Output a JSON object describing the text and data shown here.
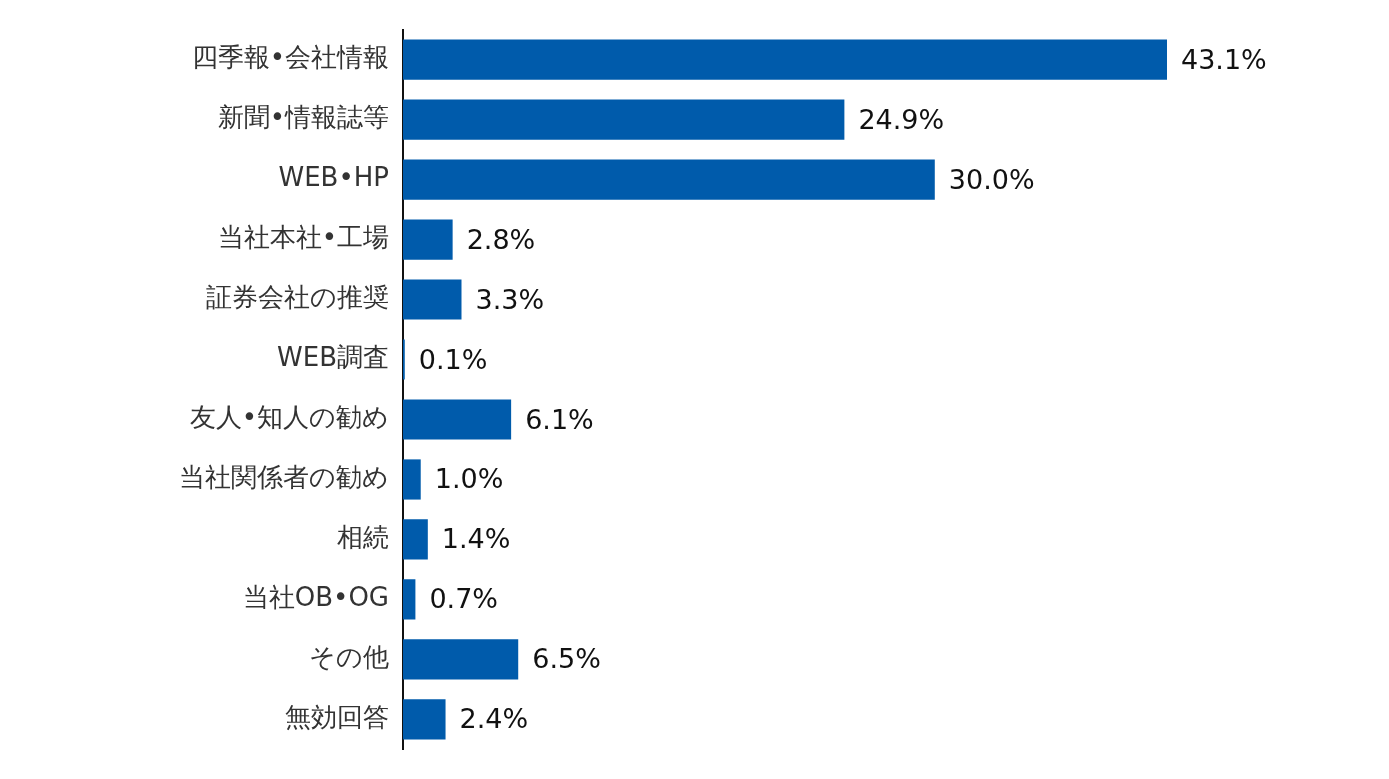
{
  "chart_data": {
    "type": "bar",
    "orientation": "horizontal",
    "relative": false,
    "categories": [
      "四季報•会社情報",
      "新聞•情報誌等",
      "WEB•HP",
      "当社本社•工場",
      "証券会社の推奨",
      "WEB調査",
      "友人•知人の勧め",
      "当社関係者の勧め",
      "相続",
      "当社OB•OG",
      "その他",
      "無効回答"
    ],
    "values": [
      43.1,
      24.9,
      30.0,
      2.8,
      3.3,
      0.1,
      6.1,
      1.0,
      1.4,
      0.7,
      6.5,
      2.4
    ],
    "value_labels": [
      "43.1%",
      "24.9%",
      "30.0%",
      "2.8%",
      "3.3%",
      "0.1%",
      "6.1%",
      "1.0%",
      "1.4%",
      "0.7%",
      "6.5%",
      "2.4%"
    ],
    "color": "#005bab",
    "legend": false,
    "tick_labels": "y"
  }
}
